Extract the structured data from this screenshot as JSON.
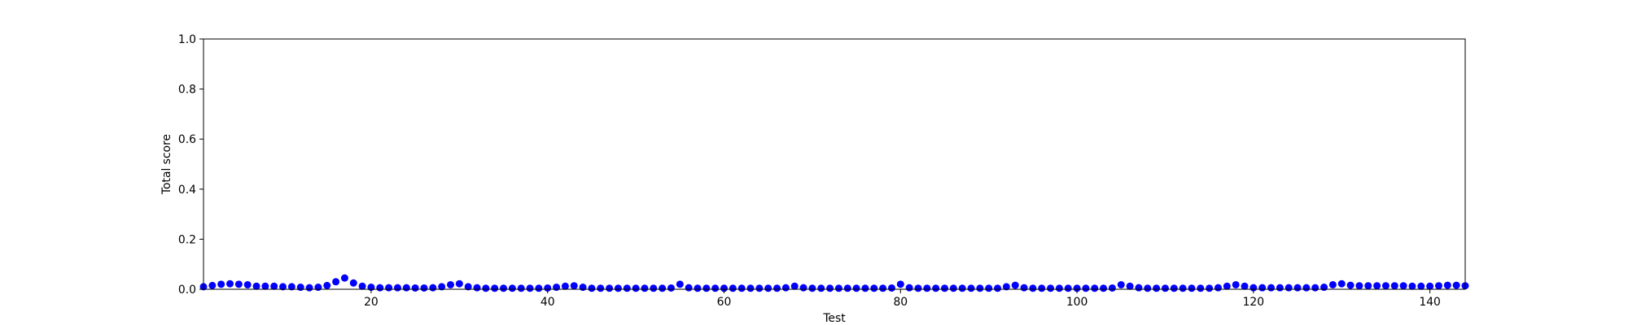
{
  "chart_data": {
    "type": "scatter",
    "title": "",
    "xlabel": "Test",
    "ylabel": "Total score",
    "xlim": [
      1,
      144
    ],
    "ylim": [
      0.0,
      1.0
    ],
    "xticks": [
      20,
      40,
      60,
      80,
      100,
      120,
      140
    ],
    "yticks": [
      0.0,
      0.2,
      0.4,
      0.6,
      0.8,
      1.0
    ],
    "xtick_labels": [
      "20",
      "40",
      "60",
      "80",
      "100",
      "120",
      "140"
    ],
    "ytick_labels": [
      "0.0",
      "0.2",
      "0.4",
      "0.6",
      "0.8",
      "1.0"
    ],
    "grid": false,
    "marker_color": "#0000ff",
    "series": [
      {
        "x": [
          1,
          2,
          3,
          4,
          5,
          6,
          7,
          8,
          9,
          10,
          11,
          12,
          13,
          14,
          15,
          16,
          17,
          18,
          19,
          20,
          21,
          22,
          23,
          24,
          25,
          26,
          27,
          28,
          29,
          30,
          31,
          32,
          33,
          34,
          35,
          36,
          37,
          38,
          39,
          40,
          41,
          42,
          43,
          44,
          45,
          46,
          47,
          48,
          49,
          50,
          51,
          52,
          53,
          54,
          55,
          56,
          57,
          58,
          59,
          60,
          61,
          62,
          63,
          64,
          65,
          66,
          67,
          68,
          69,
          70,
          71,
          72,
          73,
          74,
          75,
          76,
          77,
          78,
          79,
          80,
          81,
          82,
          83,
          84,
          85,
          86,
          87,
          88,
          89,
          90,
          91,
          92,
          93,
          94,
          95,
          96,
          97,
          98,
          99,
          100,
          101,
          102,
          103,
          104,
          105,
          106,
          107,
          108,
          109,
          110,
          111,
          112,
          113,
          114,
          115,
          116,
          117,
          118,
          119,
          120,
          121,
          122,
          123,
          124,
          125,
          126,
          127,
          128,
          129,
          130,
          131,
          132,
          133,
          134,
          135,
          136,
          137,
          138,
          139,
          140,
          141,
          142,
          143,
          144
        ],
        "y": [
          0.01,
          0.015,
          0.02,
          0.022,
          0.02,
          0.018,
          0.012,
          0.012,
          0.012,
          0.01,
          0.01,
          0.008,
          0.006,
          0.008,
          0.015,
          0.03,
          0.045,
          0.025,
          0.012,
          0.008,
          0.006,
          0.006,
          0.006,
          0.006,
          0.005,
          0.005,
          0.006,
          0.01,
          0.018,
          0.022,
          0.01,
          0.006,
          0.004,
          0.004,
          0.004,
          0.004,
          0.004,
          0.004,
          0.004,
          0.005,
          0.008,
          0.012,
          0.014,
          0.008,
          0.004,
          0.004,
          0.004,
          0.004,
          0.004,
          0.004,
          0.004,
          0.004,
          0.004,
          0.005,
          0.02,
          0.006,
          0.004,
          0.004,
          0.004,
          0.004,
          0.004,
          0.004,
          0.004,
          0.004,
          0.004,
          0.004,
          0.006,
          0.012,
          0.006,
          0.004,
          0.004,
          0.004,
          0.004,
          0.004,
          0.004,
          0.004,
          0.004,
          0.004,
          0.005,
          0.02,
          0.006,
          0.004,
          0.004,
          0.004,
          0.004,
          0.004,
          0.004,
          0.004,
          0.004,
          0.004,
          0.004,
          0.01,
          0.016,
          0.006,
          0.004,
          0.004,
          0.004,
          0.004,
          0.004,
          0.004,
          0.004,
          0.004,
          0.004,
          0.005,
          0.018,
          0.012,
          0.006,
          0.004,
          0.004,
          0.004,
          0.004,
          0.004,
          0.004,
          0.004,
          0.004,
          0.006,
          0.012,
          0.018,
          0.012,
          0.006,
          0.006,
          0.006,
          0.006,
          0.006,
          0.006,
          0.006,
          0.006,
          0.008,
          0.018,
          0.022,
          0.016,
          0.014,
          0.014,
          0.014,
          0.014,
          0.014,
          0.014,
          0.012,
          0.012,
          0.012,
          0.014,
          0.016,
          0.016,
          0.014
        ]
      }
    ]
  }
}
